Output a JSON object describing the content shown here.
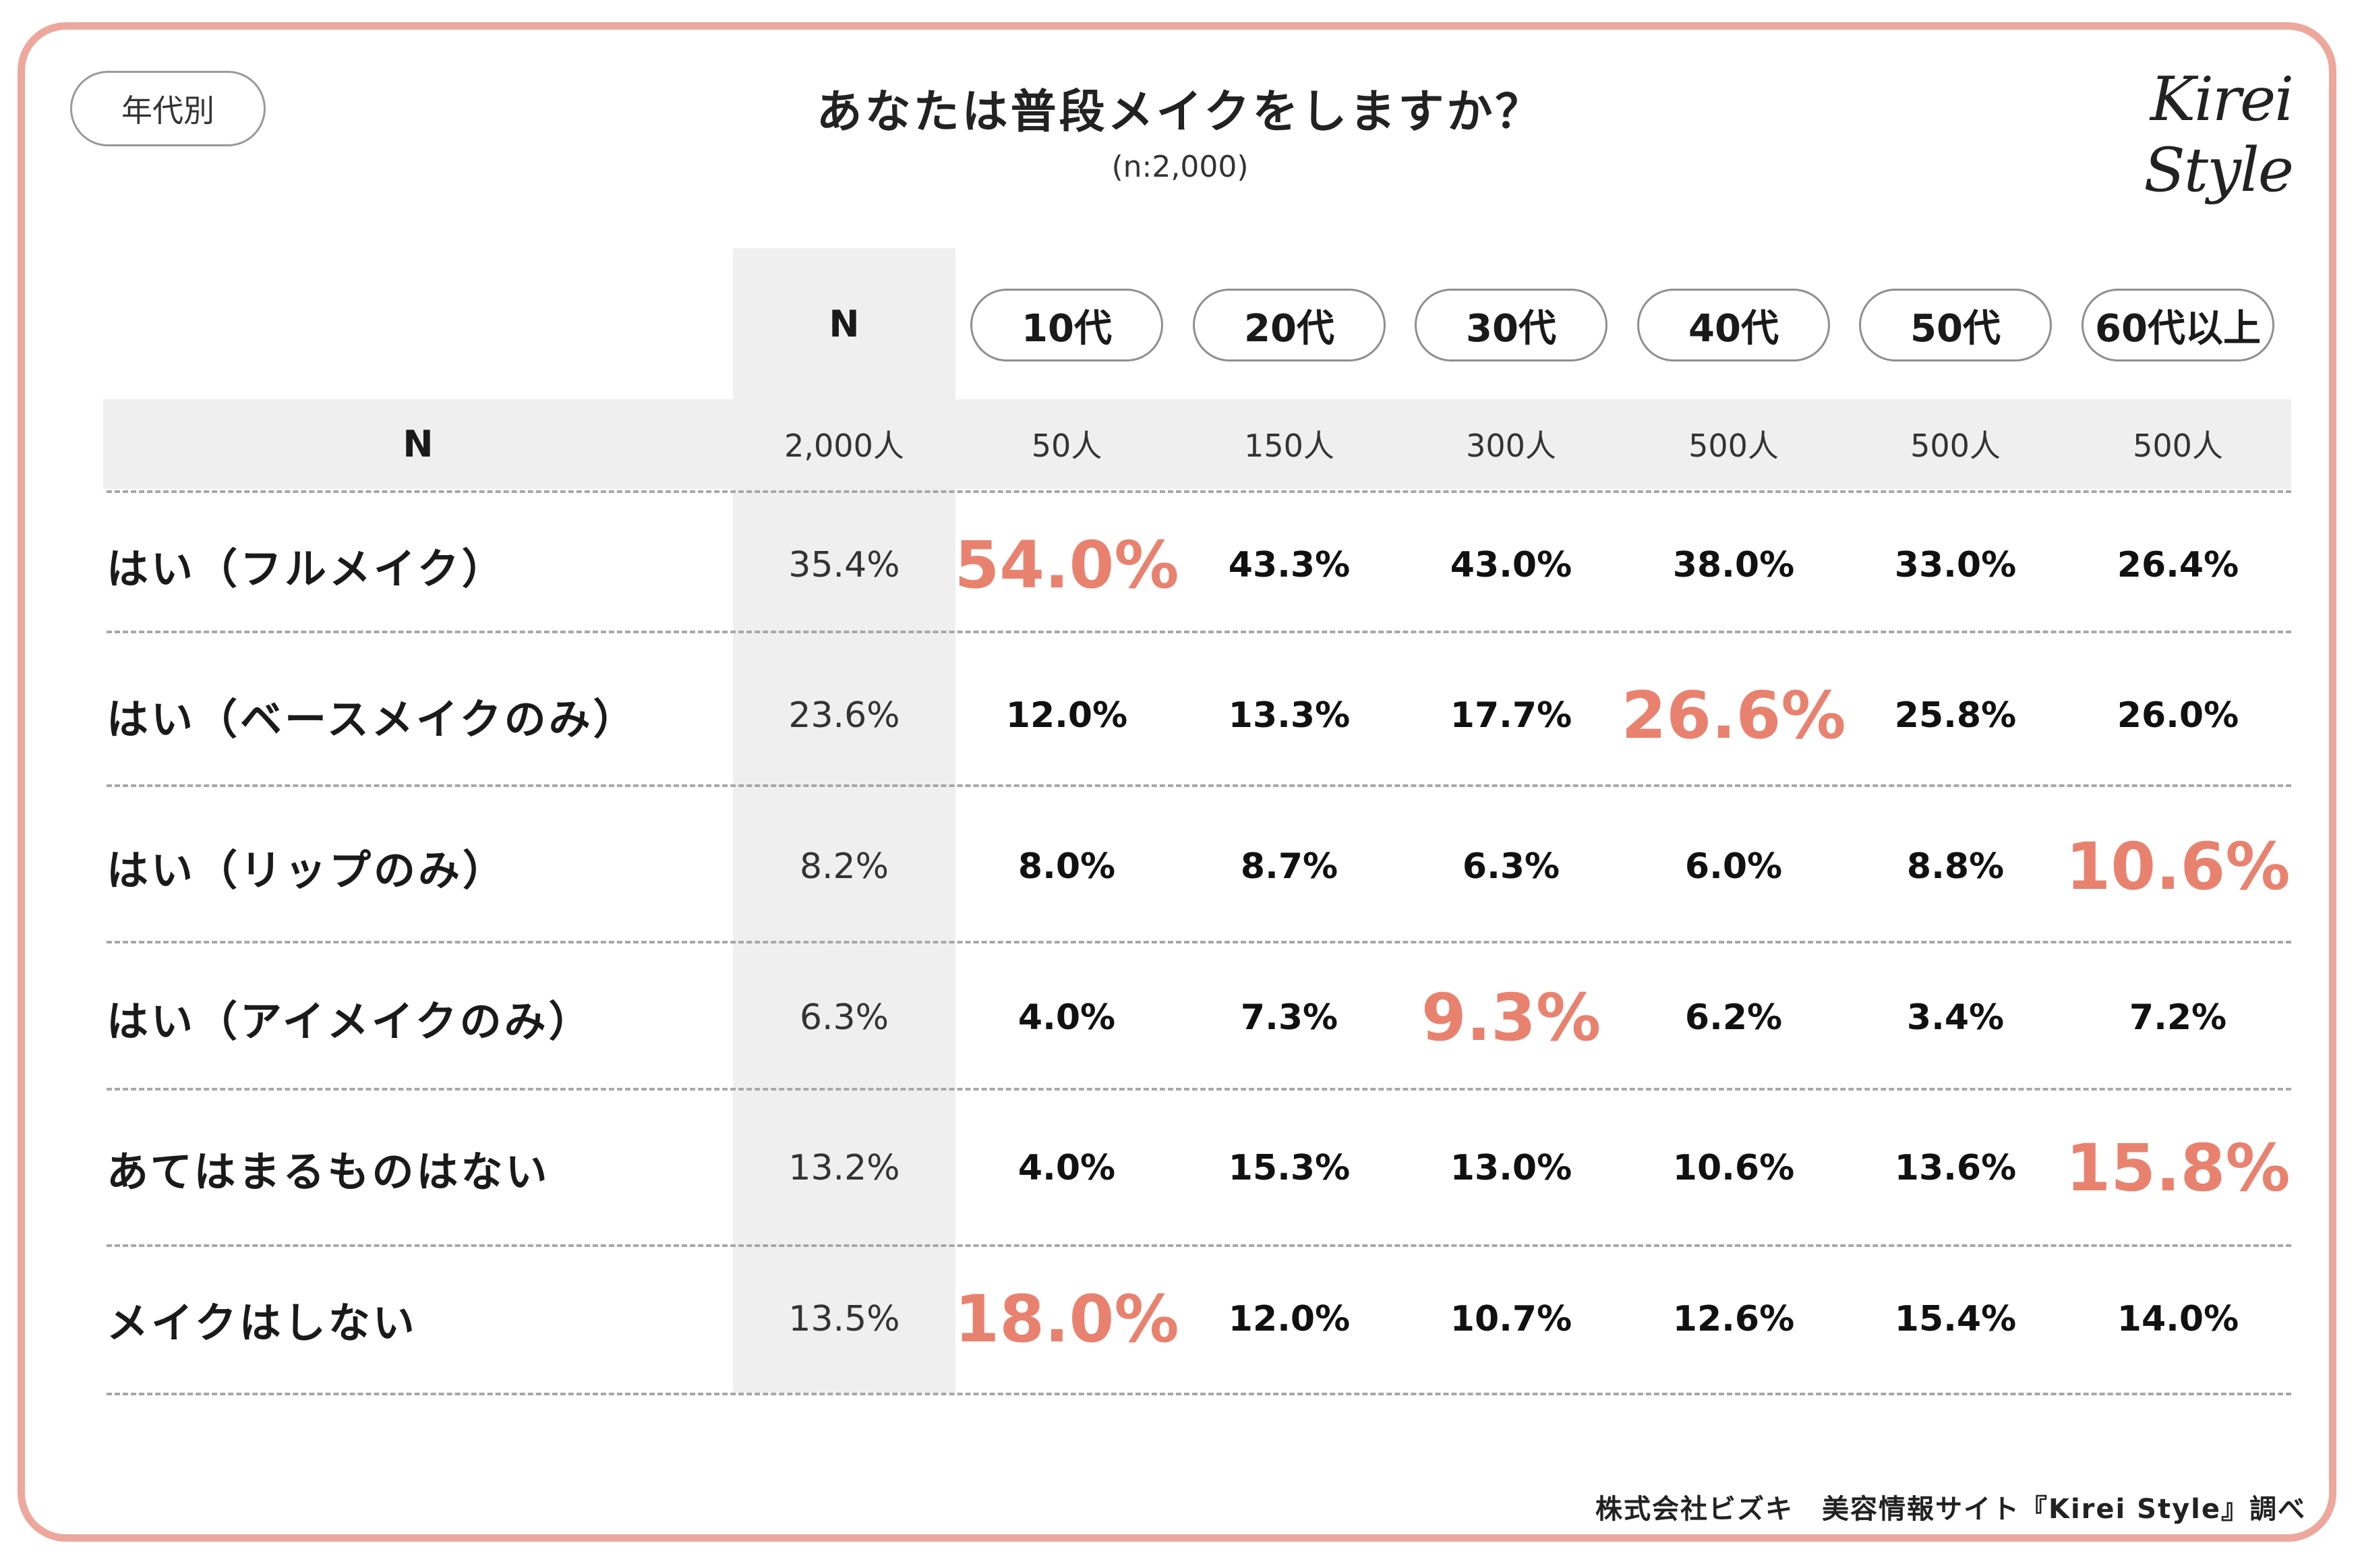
{
  "badge": "年代別",
  "title": "あなたは普段メイクをしますか？",
  "subtitle": "(n:2,000)",
  "logo": "Kirei Style",
  "footer": "株式会社ビズキ　美容情報サイト『Kirei Style』調べ",
  "colors": {
    "accent": "#e8826f",
    "frame": "#eda79c",
    "shade": "#efefef"
  },
  "chart_data": {
    "type": "table",
    "title": "あなたは普段メイクをしますか？",
    "n_header": "N",
    "columns": [
      "10代",
      "20代",
      "30代",
      "40代",
      "50代",
      "60代以上"
    ],
    "n_row": {
      "label": "N",
      "total": "2,000人",
      "values": [
        "50人",
        "150人",
        "300人",
        "500人",
        "500人",
        "500人"
      ]
    },
    "rows": [
      {
        "label": "はい（フルメイク）",
        "total": "35.4%",
        "values": [
          "54.0%",
          "43.3%",
          "43.0%",
          "38.0%",
          "33.0%",
          "26.4%"
        ],
        "highlight": 0
      },
      {
        "label": "はい（ベースメイクのみ）",
        "total": "23.6%",
        "values": [
          "12.0%",
          "13.3%",
          "17.7%",
          "26.6%",
          "25.8%",
          "26.0%"
        ],
        "highlight": 3
      },
      {
        "label": "はい（リップのみ）",
        "total": "8.2%",
        "values": [
          "8.0%",
          "8.7%",
          "6.3%",
          "6.0%",
          "8.8%",
          "10.6%"
        ],
        "highlight": 5
      },
      {
        "label": "はい（アイメイクのみ）",
        "total": "6.3%",
        "values": [
          "4.0%",
          "7.3%",
          "9.3%",
          "6.2%",
          "3.4%",
          "7.2%"
        ],
        "highlight": 2
      },
      {
        "label": "あてはまるものはない",
        "total": "13.2%",
        "values": [
          "4.0%",
          "15.3%",
          "13.0%",
          "10.6%",
          "13.6%",
          "15.8%"
        ],
        "highlight": 5
      },
      {
        "label": "メイクはしない",
        "total": "13.5%",
        "values": [
          "18.0%",
          "12.0%",
          "10.7%",
          "12.6%",
          "15.4%",
          "14.0%"
        ],
        "highlight": 0
      }
    ]
  }
}
